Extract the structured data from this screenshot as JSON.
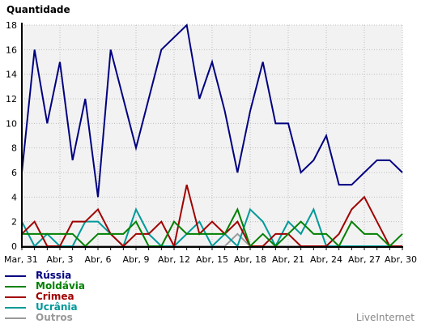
{
  "credit": "LiveInternet",
  "chart_data": {
    "type": "line",
    "title": "",
    "ylabel": "Quantidade",
    "xlabel": "",
    "ylim": [
      0,
      18
    ],
    "yticks": [
      0,
      2,
      4,
      6,
      8,
      10,
      12,
      14,
      16,
      18
    ],
    "grid": true,
    "legend_position": "bottom-left",
    "x": [
      "Mar, 31",
      "Abr, 1",
      "Abr, 2",
      "Abr, 3",
      "Abr, 4",
      "Abr, 5",
      "Abr, 6",
      "Abr, 7",
      "Abr, 8",
      "Abr, 9",
      "Abr, 10",
      "Abr, 11",
      "Abr, 12",
      "Abr, 13",
      "Abr, 14",
      "Abr, 15",
      "Abr, 16",
      "Abr, 17",
      "Abr, 18",
      "Abr, 19",
      "Abr, 20",
      "Abr, 21",
      "Abr, 22",
      "Abr, 23",
      "Abr, 24",
      "Abr, 25",
      "Abr, 26",
      "Abr, 27",
      "Abr, 28",
      "Abr, 29",
      "Abr, 30"
    ],
    "xtick_labels": [
      "Mar, 31",
      "Abr, 3",
      "Abr, 6",
      "Abr, 9",
      "Abr, 12",
      "Abr, 15",
      "Abr, 18",
      "Abr, 21",
      "Abr, 24",
      "Abr, 27",
      "Abr, 30"
    ],
    "series": [
      {
        "name": "Rússia",
        "color": "#000080",
        "values": [
          6,
          16,
          10,
          15,
          7,
          12,
          4,
          16,
          12,
          8,
          12,
          16,
          17,
          18,
          12,
          15,
          11,
          6,
          11,
          15,
          10,
          10,
          6,
          7,
          9,
          5,
          5,
          6,
          7,
          7,
          6
        ]
      },
      {
        "name": "Moldávia",
        "color": "#008000",
        "values": [
          1,
          1,
          1,
          1,
          1,
          0,
          1,
          1,
          1,
          2,
          0,
          0,
          2,
          1,
          1,
          1,
          1,
          3,
          0,
          1,
          0,
          1,
          2,
          1,
          1,
          0,
          2,
          1,
          1,
          0,
          1
        ]
      },
      {
        "name": "Crimea",
        "color": "#a00000",
        "values": [
          1,
          2,
          0,
          0,
          2,
          2,
          3,
          1,
          0,
          1,
          1,
          2,
          0,
          5,
          1,
          2,
          1,
          2,
          0,
          0,
          1,
          1,
          0,
          0,
          0,
          1,
          3,
          4,
          2,
          0,
          0
        ]
      },
      {
        "name": "Ucrânia",
        "color": "#009999",
        "values": [
          2,
          0,
          1,
          0,
          0,
          2,
          2,
          1,
          0,
          3,
          1,
          0,
          0,
          1,
          2,
          0,
          1,
          0,
          3,
          2,
          0,
          2,
          1,
          3,
          0,
          0,
          0,
          0,
          0,
          0,
          0
        ]
      },
      {
        "name": "Outros",
        "color": "#999999",
        "values": [
          0,
          0,
          0,
          0,
          0,
          0,
          0,
          0,
          0,
          0,
          0,
          0,
          0,
          0,
          0,
          0,
          0,
          1,
          0,
          0,
          0,
          0,
          0,
          0,
          0,
          0,
          0,
          0,
          0,
          0,
          0
        ]
      }
    ]
  }
}
